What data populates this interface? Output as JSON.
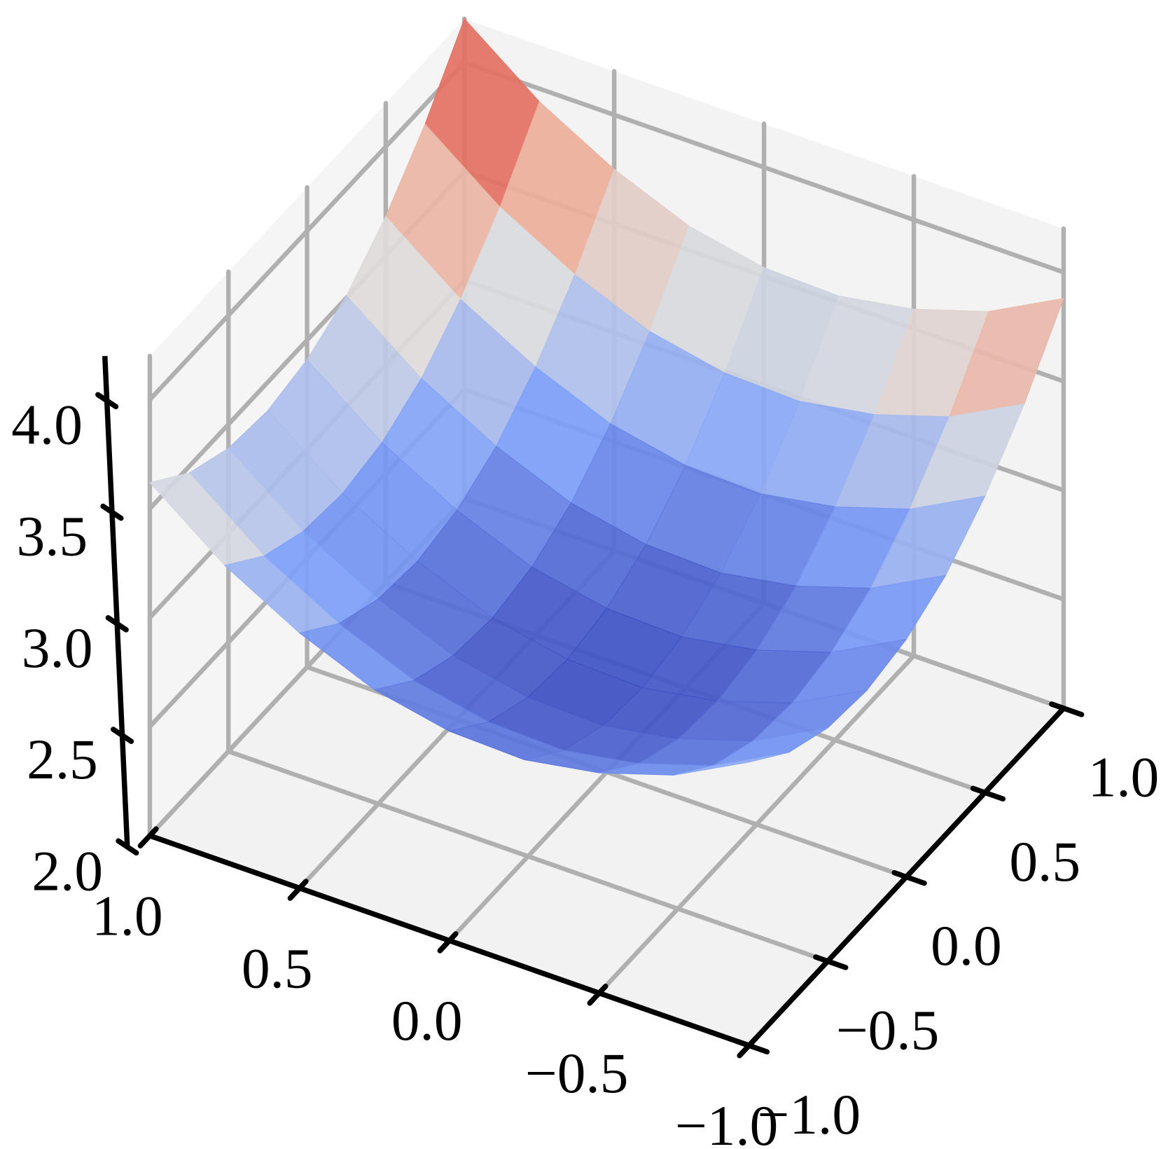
{
  "chart_data": {
    "type": "surface",
    "x": [
      -1,
      -0.75,
      -0.5,
      -0.25,
      0,
      0.25,
      0.5,
      0.75,
      1
    ],
    "y": [
      -1,
      -0.75,
      -0.5,
      -0.25,
      0,
      0.25,
      0.5,
      0.75,
      1
    ],
    "z": [
      [
        3.3,
        3.12,
        3.01,
        2.95,
        2.96,
        3.03,
        3.17,
        3.36,
        3.62
      ],
      [
        3.15,
        2.97,
        2.86,
        2.8,
        2.81,
        2.88,
        3.02,
        3.21,
        3.47
      ],
      [
        3.07,
        2.89,
        2.78,
        2.72,
        2.73,
        2.8,
        2.94,
        3.13,
        3.39
      ],
      [
        3.05,
        2.87,
        2.76,
        2.7,
        2.71,
        2.78,
        2.92,
        3.11,
        3.37
      ],
      [
        3.09,
        2.91,
        2.8,
        2.74,
        2.75,
        2.82,
        2.96,
        3.15,
        3.41
      ],
      [
        3.19,
        3.01,
        2.9,
        2.84,
        2.85,
        2.92,
        3.06,
        3.25,
        3.51
      ],
      [
        3.36,
        3.18,
        3.07,
        3.01,
        3.02,
        3.09,
        3.23,
        3.42,
        3.68
      ],
      [
        3.59,
        3.41,
        3.3,
        3.24,
        3.25,
        3.32,
        3.46,
        3.65,
        3.91
      ],
      [
        3.88,
        3.7,
        3.59,
        3.53,
        3.54,
        3.61,
        3.75,
        3.94,
        4.2
      ]
    ],
    "cmap": "coolwarm",
    "xlim": [
      -1,
      1
    ],
    "ylim": [
      -1,
      1
    ],
    "zlim": [
      2.0,
      4.2
    ],
    "xticks": [
      {
        "value": -1,
        "label": "−1.0"
      },
      {
        "value": -0.5,
        "label": "−0.5"
      },
      {
        "value": 0,
        "label": "0.0"
      },
      {
        "value": 0.5,
        "label": "0.5"
      },
      {
        "value": 1,
        "label": "1.0"
      }
    ],
    "yticks": [
      {
        "value": -1,
        "label": "−1.0"
      },
      {
        "value": -0.5,
        "label": "−0.5"
      },
      {
        "value": 0,
        "label": "0.0"
      },
      {
        "value": 0.5,
        "label": "0.5"
      },
      {
        "value": 1,
        "label": "1.0"
      }
    ],
    "zticks": [
      {
        "value": 2,
        "label": "2.0"
      },
      {
        "value": 2.5,
        "label": "2.5"
      },
      {
        "value": 3,
        "label": "3.0"
      },
      {
        "value": 3.5,
        "label": "3.5"
      },
      {
        "value": 4,
        "label": "4.0"
      }
    ],
    "grid": true,
    "pane_color": "#f2f2f2",
    "grid_color": "#b0b0b0"
  }
}
